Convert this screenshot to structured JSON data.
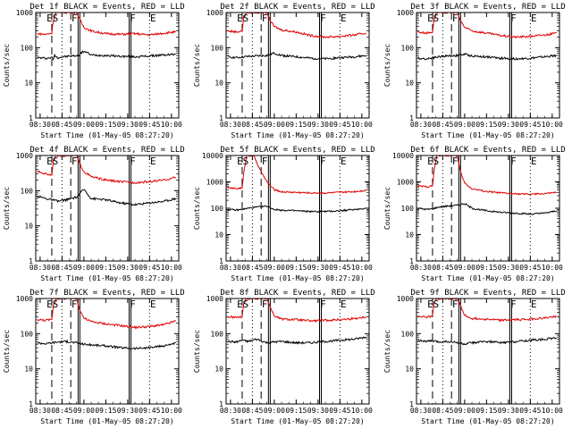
{
  "colors": {
    "events": "#000000",
    "lld": "#e00000",
    "axes": "#000000"
  },
  "chart_data": [
    {
      "type": "line",
      "title": "Det 1f BLACK = Events, RED = LLD",
      "xlabel": "Start Time (01-May-05 08:27:20)",
      "ylabel": "Counts/sec",
      "xlim": [
        "08:27",
        "10:05"
      ],
      "ylim": [
        1,
        1000
      ],
      "yscale": "log",
      "yticks": [
        "1",
        "10",
        "100",
        "1000"
      ],
      "xticks": [
        "08:30",
        "08:45",
        "09:00",
        "09:15",
        "09:30",
        "09:45",
        "10:00"
      ],
      "markers": [
        "E",
        "S",
        "F",
        "F",
        "E"
      ],
      "series": [
        {
          "color": "black",
          "x": [
            "08:28",
            "08:34",
            "08:38",
            "08:39",
            "08:40",
            "08:42",
            "08:46",
            "08:52",
            "08:56",
            "09:00",
            "09:05",
            "09:15",
            "09:25",
            "09:35",
            "09:45",
            "09:55",
            "10:03"
          ],
          "values": [
            52,
            50,
            52,
            48,
            60,
            52,
            55,
            58,
            60,
            80,
            62,
            60,
            57,
            55,
            58,
            62,
            65
          ]
        },
        {
          "color": "red",
          "x": [
            "08:28",
            "08:34",
            "08:38",
            "08:39",
            "08:41",
            "08:50",
            "08:55",
            "08:57",
            "09:00",
            "09:05",
            "09:15",
            "09:25",
            "09:35",
            "09:45",
            "09:55",
            "10:03"
          ],
          "values": [
            250,
            240,
            260,
            600,
            1000,
            1000,
            1000,
            650,
            380,
            300,
            250,
            240,
            250,
            230,
            260,
            280
          ]
        }
      ]
    },
    {
      "type": "line",
      "title": "Det 2f BLACK = Events, RED = LLD",
      "xlabel": "Start Time (01-May-05 08:27:20)",
      "ylabel": "Counts/sec",
      "xlim": [
        "08:27",
        "10:05"
      ],
      "ylim": [
        1,
        1000
      ],
      "yscale": "log",
      "yticks": [
        "1",
        "10",
        "100",
        "1000"
      ],
      "xticks": [
        "08:30",
        "08:45",
        "09:00",
        "09:15",
        "09:30",
        "09:45",
        "10:00"
      ],
      "markers": [
        "E",
        "S",
        "F",
        "F",
        "E"
      ],
      "series": [
        {
          "color": "black",
          "x": [
            "08:28",
            "08:34",
            "08:38",
            "08:42",
            "08:48",
            "08:55",
            "09:00",
            "09:05",
            "09:15",
            "09:25",
            "09:35",
            "09:45",
            "09:55",
            "10:03"
          ],
          "values": [
            55,
            52,
            54,
            56,
            58,
            60,
            70,
            60,
            55,
            50,
            48,
            52,
            55,
            60
          ]
        },
        {
          "color": "red",
          "x": [
            "08:28",
            "08:34",
            "08:38",
            "08:39",
            "08:41",
            "08:50",
            "08:55",
            "08:57",
            "09:00",
            "09:05",
            "09:15",
            "09:25",
            "09:35",
            "09:45",
            "09:55",
            "10:03"
          ],
          "values": [
            300,
            280,
            300,
            700,
            1000,
            1000,
            1000,
            600,
            400,
            320,
            280,
            220,
            200,
            210,
            230,
            260
          ]
        }
      ]
    },
    {
      "type": "line",
      "title": "Det 3f BLACK = Events, RED = LLD",
      "xlabel": "Start Time (01-May-05 08:27:20)",
      "ylabel": "Counts/sec",
      "xlim": [
        "08:27",
        "10:05"
      ],
      "ylim": [
        1,
        1000
      ],
      "yscale": "log",
      "yticks": [
        "1",
        "10",
        "100",
        "1000"
      ],
      "xticks": [
        "08:30",
        "08:45",
        "09:00",
        "09:15",
        "09:30",
        "09:45",
        "10:00"
      ],
      "markers": [
        "E",
        "S",
        "F",
        "F",
        "E"
      ],
      "series": [
        {
          "color": "black",
          "x": [
            "08:28",
            "08:34",
            "08:38",
            "08:42",
            "08:48",
            "08:55",
            "09:00",
            "09:05",
            "09:15",
            "09:25",
            "09:35",
            "09:45",
            "09:55",
            "10:03"
          ],
          "values": [
            50,
            48,
            52,
            55,
            58,
            60,
            65,
            58,
            55,
            50,
            48,
            50,
            55,
            60
          ]
        },
        {
          "color": "red",
          "x": [
            "08:28",
            "08:34",
            "08:38",
            "08:39",
            "08:41",
            "08:50",
            "08:55",
            "08:57",
            "09:00",
            "09:05",
            "09:15",
            "09:25",
            "09:35",
            "09:45",
            "09:55",
            "10:03"
          ],
          "values": [
            280,
            260,
            280,
            650,
            1000,
            1000,
            1000,
            600,
            380,
            300,
            260,
            220,
            200,
            210,
            230,
            260
          ]
        }
      ]
    },
    {
      "type": "line",
      "title": "Det 4f BLACK = Events, RED = LLD",
      "xlabel": "Start Time (01-May-05 08:27:20)",
      "ylabel": "Counts/sec",
      "xlim": [
        "08:27",
        "10:05"
      ],
      "ylim": [
        1,
        1000
      ],
      "yscale": "log",
      "yticks": [
        "1",
        "10",
        "100",
        "1000"
      ],
      "xticks": [
        "08:30",
        "08:45",
        "09:00",
        "09:15",
        "09:30",
        "09:45",
        "10:00"
      ],
      "markers": [
        "E",
        "S",
        "F",
        "F",
        "E"
      ],
      "series": [
        {
          "color": "black",
          "x": [
            "08:28",
            "08:34",
            "08:38",
            "08:42",
            "08:48",
            "08:55",
            "09:00",
            "09:05",
            "09:15",
            "09:25",
            "09:35",
            "09:45",
            "09:55",
            "10:03"
          ],
          "values": [
            70,
            60,
            55,
            50,
            55,
            65,
            110,
            60,
            55,
            45,
            40,
            45,
            50,
            60
          ]
        },
        {
          "color": "red",
          "x": [
            "08:28",
            "08:34",
            "08:38",
            "08:39",
            "08:41",
            "08:50",
            "08:55",
            "08:57",
            "09:00",
            "09:05",
            "09:15",
            "09:25",
            "09:35",
            "09:45",
            "09:55",
            "10:03"
          ],
          "values": [
            350,
            300,
            280,
            700,
            1000,
            1000,
            1000,
            600,
            350,
            250,
            200,
            180,
            170,
            180,
            200,
            240
          ]
        }
      ]
    },
    {
      "type": "line",
      "title": "Det 5f BLACK = Events, RED = LLD",
      "xlabel": "Start Time (01-May-05 08:27:20)",
      "ylabel": "Counts/sec",
      "xlim": [
        "08:27",
        "10:05"
      ],
      "ylim": [
        1,
        10000
      ],
      "yscale": "log",
      "yticks": [
        "1",
        "10",
        "100",
        "1000",
        "10000"
      ],
      "xticks": [
        "08:30",
        "08:45",
        "09:00",
        "09:15",
        "09:30",
        "09:45",
        "10:00"
      ],
      "markers": [
        "E",
        "S",
        "F",
        "F",
        "E"
      ],
      "series": [
        {
          "color": "black",
          "x": [
            "08:28",
            "08:34",
            "08:38",
            "08:42",
            "08:48",
            "08:55",
            "09:00",
            "09:05",
            "09:15",
            "09:25",
            "09:35",
            "09:45",
            "09:55",
            "10:03"
          ],
          "values": [
            90,
            85,
            90,
            100,
            110,
            120,
            90,
            85,
            80,
            75,
            75,
            80,
            90,
            100
          ]
        },
        {
          "color": "red",
          "x": [
            "08:28",
            "08:34",
            "08:38",
            "08:39",
            "08:41",
            "08:46",
            "08:50",
            "08:55",
            "09:00",
            "09:05",
            "09:15",
            "09:25",
            "09:35",
            "09:45",
            "09:55",
            "10:03"
          ],
          "values": [
            600,
            550,
            600,
            2000,
            10000,
            10000,
            3000,
            1000,
            500,
            420,
            400,
            380,
            380,
            400,
            430,
            480
          ]
        }
      ]
    },
    {
      "type": "line",
      "title": "Det 6f BLACK = Events, RED = LLD",
      "xlabel": "Start Time (01-May-05 08:27:20)",
      "ylabel": "Counts/sec",
      "xlim": [
        "08:27",
        "10:05"
      ],
      "ylim": [
        1,
        10000
      ],
      "yscale": "log",
      "yticks": [
        "1",
        "10",
        "100",
        "1000",
        "10000"
      ],
      "xticks": [
        "08:30",
        "08:45",
        "09:00",
        "09:15",
        "09:30",
        "09:45",
        "10:00"
      ],
      "markers": [
        "E",
        "S",
        "F",
        "F",
        "E"
      ],
      "series": [
        {
          "color": "black",
          "x": [
            "08:28",
            "08:34",
            "08:38",
            "08:42",
            "08:48",
            "08:55",
            "09:00",
            "09:05",
            "09:15",
            "09:25",
            "09:35",
            "09:45",
            "09:55",
            "10:03"
          ],
          "values": [
            100,
            90,
            95,
            110,
            120,
            130,
            150,
            100,
            80,
            70,
            65,
            60,
            65,
            80
          ]
        },
        {
          "color": "red",
          "x": [
            "08:28",
            "08:34",
            "08:38",
            "08:39",
            "08:41",
            "08:50",
            "08:55",
            "08:57",
            "09:00",
            "09:05",
            "09:15",
            "09:25",
            "09:35",
            "09:45",
            "09:55",
            "10:03"
          ],
          "values": [
            700,
            650,
            700,
            2500,
            10000,
            10000,
            10000,
            2500,
            900,
            550,
            430,
            380,
            350,
            340,
            360,
            400
          ]
        }
      ]
    },
    {
      "type": "line",
      "title": "Det 7f BLACK = Events, RED = LLD",
      "xlabel": "Start Time (01-May-05 08:27:20)",
      "ylabel": "Counts/sec",
      "xlim": [
        "08:27",
        "10:05"
      ],
      "ylim": [
        1,
        1000
      ],
      "yscale": "log",
      "yticks": [
        "1",
        "10",
        "100",
        "1000"
      ],
      "xticks": [
        "08:30",
        "08:45",
        "09:00",
        "09:15",
        "09:30",
        "09:45",
        "10:00"
      ],
      "markers": [
        "E",
        "S",
        "F",
        "F",
        "E"
      ],
      "series": [
        {
          "color": "black",
          "x": [
            "08:28",
            "08:34",
            "08:38",
            "08:42",
            "08:48",
            "08:55",
            "09:00",
            "09:05",
            "09:15",
            "09:25",
            "09:35",
            "09:45",
            "09:55",
            "10:03"
          ],
          "values": [
            55,
            52,
            55,
            58,
            60,
            55,
            50,
            48,
            45,
            40,
            38,
            40,
            45,
            55
          ]
        },
        {
          "color": "red",
          "x": [
            "08:28",
            "08:34",
            "08:38",
            "08:39",
            "08:41",
            "08:50",
            "08:55",
            "08:57",
            "09:00",
            "09:05",
            "09:15",
            "09:25",
            "09:35",
            "09:45",
            "09:55",
            "10:03"
          ],
          "values": [
            250,
            240,
            250,
            600,
            1000,
            1000,
            1000,
            500,
            280,
            220,
            190,
            170,
            150,
            160,
            180,
            230
          ]
        }
      ]
    },
    {
      "type": "line",
      "title": "Det 8f BLACK = Events, RED = LLD",
      "xlabel": "Start Time (01-May-05 08:27:20)",
      "ylabel": "Counts/sec",
      "xlim": [
        "08:27",
        "10:05"
      ],
      "ylim": [
        1,
        1000
      ],
      "yscale": "log",
      "yticks": [
        "1",
        "10",
        "100",
        "1000"
      ],
      "xticks": [
        "08:30",
        "08:45",
        "09:00",
        "09:15",
        "09:30",
        "09:45",
        "10:00"
      ],
      "markers": [
        "E",
        "S",
        "F",
        "F",
        "E"
      ],
      "series": [
        {
          "color": "black",
          "x": [
            "08:28",
            "08:34",
            "08:38",
            "08:42",
            "08:48",
            "08:55",
            "09:00",
            "09:05",
            "09:15",
            "09:25",
            "09:35",
            "09:45",
            "09:55",
            "10:03"
          ],
          "values": [
            60,
            58,
            65,
            60,
            70,
            55,
            58,
            60,
            55,
            55,
            60,
            65,
            70,
            80
          ]
        },
        {
          "color": "red",
          "x": [
            "08:28",
            "08:34",
            "08:38",
            "08:39",
            "08:41",
            "08:50",
            "08:55",
            "08:57",
            "09:00",
            "09:05",
            "09:15",
            "09:25",
            "09:35",
            "09:45",
            "09:55",
            "10:03"
          ],
          "values": [
            300,
            290,
            300,
            700,
            1000,
            1000,
            1000,
            600,
            320,
            260,
            250,
            230,
            240,
            250,
            270,
            300
          ]
        }
      ]
    },
    {
      "type": "line",
      "title": "Det 9f BLACK = Events, RED = LLD",
      "xlabel": "Start Time (01-May-05 08:27:20)",
      "ylabel": "Counts/sec",
      "xlim": [
        "08:27",
        "10:05"
      ],
      "ylim": [
        1,
        1000
      ],
      "yscale": "log",
      "yticks": [
        "1",
        "10",
        "100",
        "1000"
      ],
      "xticks": [
        "08:30",
        "08:45",
        "09:00",
        "09:15",
        "09:30",
        "09:45",
        "10:00"
      ],
      "markers": [
        "E",
        "S",
        "F",
        "F",
        "E"
      ],
      "series": [
        {
          "color": "black",
          "x": [
            "08:28",
            "08:34",
            "08:38",
            "08:42",
            "08:48",
            "08:55",
            "09:00",
            "09:05",
            "09:15",
            "09:25",
            "09:35",
            "09:45",
            "09:55",
            "10:03"
          ],
          "values": [
            65,
            60,
            62,
            58,
            60,
            55,
            50,
            55,
            60,
            55,
            60,
            65,
            70,
            75
          ]
        },
        {
          "color": "red",
          "x": [
            "08:28",
            "08:34",
            "08:38",
            "08:39",
            "08:41",
            "08:50",
            "08:55",
            "08:57",
            "09:00",
            "09:05",
            "09:15",
            "09:25",
            "09:35",
            "09:45",
            "09:55",
            "10:03"
          ],
          "values": [
            320,
            300,
            320,
            800,
            1000,
            1000,
            1000,
            650,
            330,
            270,
            260,
            240,
            250,
            260,
            280,
            310
          ]
        }
      ]
    }
  ]
}
